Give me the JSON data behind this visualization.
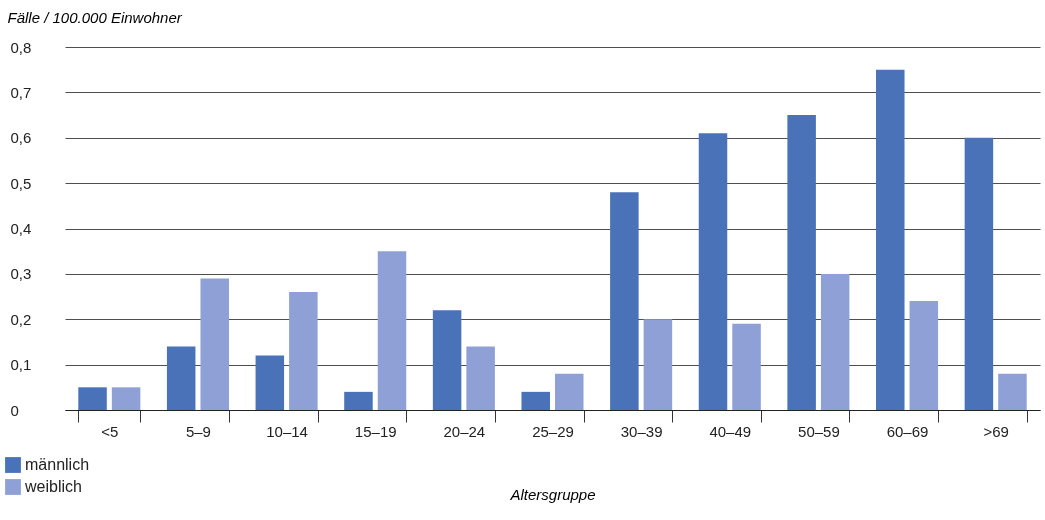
{
  "chart_data": {
    "type": "bar",
    "ylabel": "Fälle / 100.000 Einwohner",
    "xlabel": "Altersgruppe",
    "categories": [
      "<5",
      "5–9",
      "10–14",
      "15–19",
      "20–24",
      "25–29",
      "30–39",
      "40–49",
      "50–59",
      "60–69",
      ">69"
    ],
    "series": [
      {
        "name": "männlich",
        "color": "#4a72b8",
        "values": [
          0.05,
          0.14,
          0.12,
          0.04,
          0.22,
          0.04,
          0.48,
          0.61,
          0.65,
          0.75,
          0.6
        ]
      },
      {
        "name": "weiblich",
        "color": "#8fa0d6",
        "values": [
          0.05,
          0.29,
          0.26,
          0.35,
          0.14,
          0.08,
          0.2,
          0.19,
          0.3,
          0.24,
          0.08
        ]
      }
    ],
    "ylim": [
      0,
      0.8
    ],
    "yticks": [
      0,
      {
        "value": 0.1,
        "label": "0,1"
      },
      {
        "value": 0.2,
        "label": "0,2"
      },
      {
        "value": 0.3,
        "label": "0,3"
      },
      {
        "value": 0.4,
        "label": "0,4"
      },
      {
        "value": 0.5,
        "label": "0,5"
      },
      {
        "value": 0.6,
        "label": "0,6"
      },
      {
        "value": 0.7,
        "label": "0,7"
      },
      {
        "value": 0.8,
        "label": "0,8"
      }
    ],
    "grid": "y",
    "legend": "bottom left"
  }
}
